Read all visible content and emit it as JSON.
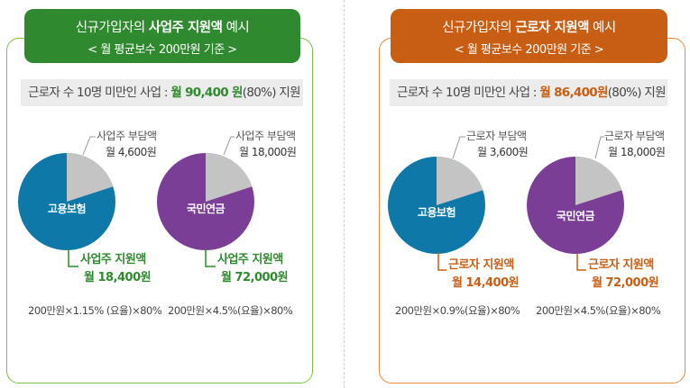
{
  "left": {
    "title_prefix": "신규가입자의 ",
    "title_bold": "사업주 지원액",
    "title_suffix": " 예시",
    "subtitle": "< 월 평균보수 200만원 기준 >",
    "info_prefix": "근로자 수 10명 미만인 사업 : ",
    "info_highlight_prefix": "월 ",
    "info_highlight_value": "90,400",
    "info_highlight_unit": " 원",
    "info_suffix": "(80%) 지원",
    "charts": [
      {
        "label": "고용보험",
        "share_title": "사업주 부담액",
        "share_amount": "월 4,600원",
        "support_title": "사업주 지원액",
        "support_amount": "월 18,400원",
        "formula": "200만원×1.15% (요율)×80%",
        "share_fraction": 0.2
      },
      {
        "label": "국민연금",
        "share_title": "사업주 부담액",
        "share_amount": "월 18,000원",
        "support_title": "사업주 지원액",
        "support_amount": "월 72,000원",
        "formula": "200만원×4.5%(요율)×80%",
        "share_fraction": 0.2
      }
    ]
  },
  "right": {
    "title_prefix": "신규가입자의 ",
    "title_bold": "근로자 지원액",
    "title_suffix": " 예시",
    "subtitle": "< 월 평균보수 200만원 기준 >",
    "info_prefix": "근로자 수 10명 미만인 사업 : ",
    "info_highlight_prefix": "월 ",
    "info_highlight_value": "86,400원",
    "info_highlight_unit": "",
    "info_suffix": "(80%) 지원",
    "charts": [
      {
        "label": "고용보험",
        "share_title": "근로자 부담액",
        "share_amount": "월 3,600원",
        "support_title": "근로자 지원액",
        "support_amount": "월 14,400원",
        "formula": "200만원×0.9%(요율)×80%",
        "share_fraction": 0.2
      },
      {
        "label": "국민연금",
        "share_title": "근로자 부담액",
        "share_amount": "월 18,000원",
        "support_title": "근로자 지원액",
        "support_amount": "월 72,000원",
        "formula": "200만원×4.5%(요율)×80%",
        "share_fraction": 0.2
      }
    ]
  },
  "colors": {
    "green_header": "#2f8a2f",
    "orange_header": "#c85e13",
    "employment_insurance": "#0e79a8",
    "national_pension": "#7a3e96",
    "share_slice": "#c4c4c4"
  }
}
